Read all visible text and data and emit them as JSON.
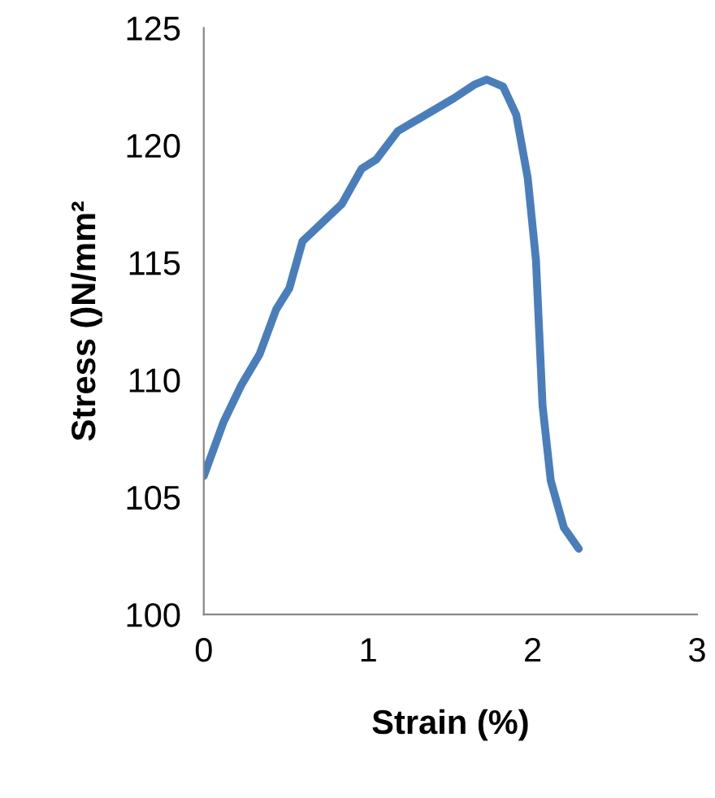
{
  "chart_data": {
    "type": "line",
    "xlabel": "Strain (%)",
    "ylabel": "Stress ()N/mm²",
    "series": [
      {
        "color": "#4a7ebb",
        "x": [
          0,
          0.12,
          0.23,
          0.34,
          0.44,
          0.52,
          0.6,
          0.69,
          0.84,
          0.96,
          1.05,
          1.18,
          1.35,
          1.52,
          1.65,
          1.72,
          1.82,
          1.9,
          1.97,
          2.02,
          2.06,
          2.11,
          2.19,
          2.28
        ],
        "values": [
          105.9,
          108.2,
          109.8,
          111.1,
          113.0,
          113.9,
          115.9,
          116.5,
          117.5,
          119.0,
          119.4,
          120.6,
          121.3,
          122.0,
          122.6,
          122.8,
          122.5,
          121.3,
          118.6,
          115.1,
          108.9,
          105.7,
          103.7,
          102.8
        ]
      }
    ],
    "xlim": [
      0,
      3
    ],
    "xticks": [
      0,
      1,
      2,
      3
    ],
    "ylim": [
      100,
      125
    ],
    "yticks": [
      100,
      105,
      110,
      115,
      120,
      125
    ],
    "grid": false,
    "legend": false,
    "marker": "none",
    "line_style": "solid"
  }
}
